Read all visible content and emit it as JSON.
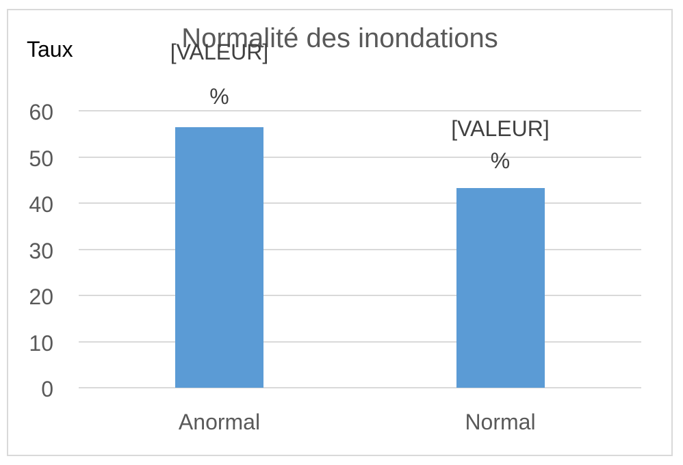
{
  "chart_data": {
    "type": "bar",
    "title": "Normalité des inondations",
    "y_axis_title": "Taux",
    "categories": [
      "Anormal",
      "Normal"
    ],
    "values": [
      56.5,
      43.3
    ],
    "data_labels": [
      {
        "line1": "[VALEUR]",
        "line2": "%"
      },
      {
        "line1": "[VALEUR]",
        "line2": "%"
      }
    ],
    "y_ticks": [
      0,
      10,
      20,
      30,
      40,
      50,
      60
    ],
    "ylim": [
      0,
      60
    ],
    "xlabel": "",
    "ylabel": "Taux",
    "grid": true,
    "legend": false,
    "colors": {
      "bar_fill": "#5B9BD5",
      "gridline": "#D9D9D9",
      "frame_border": "#D9D9D9",
      "title_text": "#595959",
      "tick_text": "#595959",
      "category_text": "#595959",
      "data_label_text": "#404040",
      "y_axis_title_text": "#000000",
      "background": "#FFFFFF"
    }
  }
}
